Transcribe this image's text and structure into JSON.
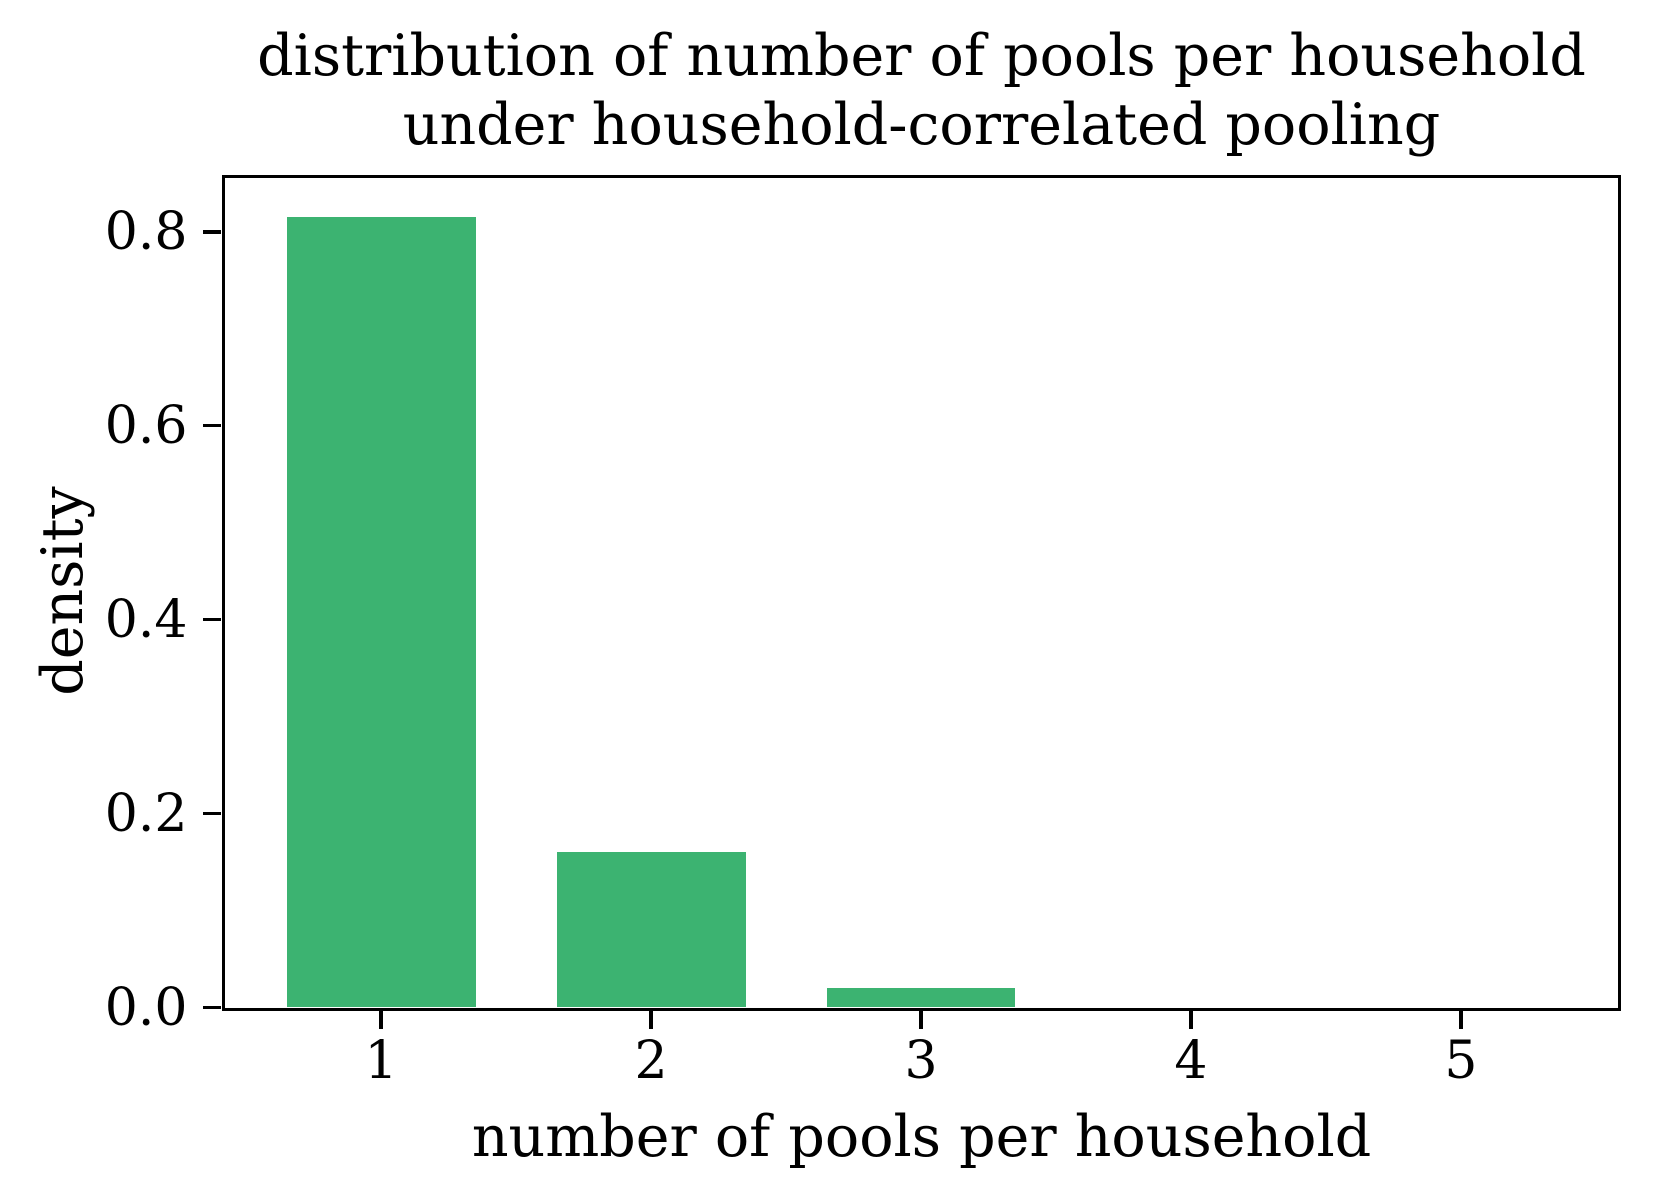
{
  "chart_data": {
    "type": "bar",
    "title": "distribution of number of pools per household\nunder household-correlated pooling",
    "xlabel": "number of pools per household",
    "ylabel": "density",
    "categories": [
      "1",
      "2",
      "3",
      "4",
      "5"
    ],
    "values": [
      0.815,
      0.16,
      0.02,
      0.0,
      0.0
    ],
    "bar_color": "#3cb371",
    "axis_color": "#000000",
    "background_color": "#ffffff",
    "xlim": [
      0.42,
      5.58
    ],
    "ylim": [
      0,
      0.856
    ],
    "yticks": [
      0.0,
      0.2,
      0.4,
      0.6,
      0.8
    ],
    "ytick_labels": [
      "0.0",
      "0.2",
      "0.4",
      "0.6",
      "0.8"
    ],
    "xtick_labels": [
      "1",
      "2",
      "3",
      "4",
      "5"
    ],
    "bar_width_units": 0.7,
    "grid": false,
    "legend_position": "none"
  }
}
